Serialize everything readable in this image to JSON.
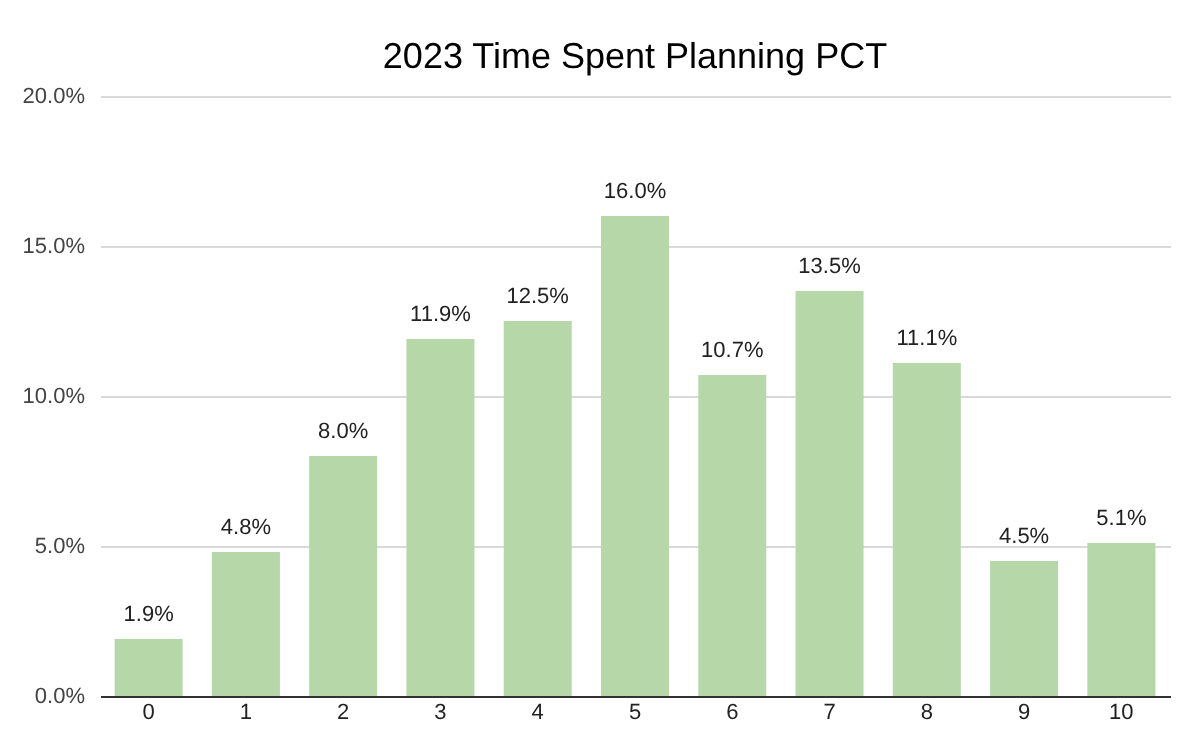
{
  "chart_data": {
    "type": "bar",
    "title": "2023 Time Spent Planning PCT",
    "categories": [
      "0",
      "1",
      "2",
      "3",
      "4",
      "5",
      "6",
      "7",
      "8",
      "9",
      "10"
    ],
    "values": [
      1.9,
      4.8,
      8.0,
      11.9,
      12.5,
      16.0,
      10.7,
      13.5,
      11.1,
      4.5,
      5.1
    ],
    "value_labels": [
      "1.9%",
      "4.8%",
      "8.0%",
      "11.9%",
      "12.5%",
      "16.0%",
      "10.7%",
      "13.5%",
      "11.1%",
      "4.5%",
      "5.1%"
    ],
    "color": "#b6d7a8",
    "ylim": [
      0,
      20
    ],
    "yticks": [
      {
        "value": 0,
        "label": "0.0%"
      },
      {
        "value": 5,
        "label": "5.0%"
      },
      {
        "value": 10,
        "label": "10.0%"
      },
      {
        "value": 15,
        "label": "15.0%"
      },
      {
        "value": 20,
        "label": "20.0%"
      }
    ],
    "grid": "y"
  }
}
